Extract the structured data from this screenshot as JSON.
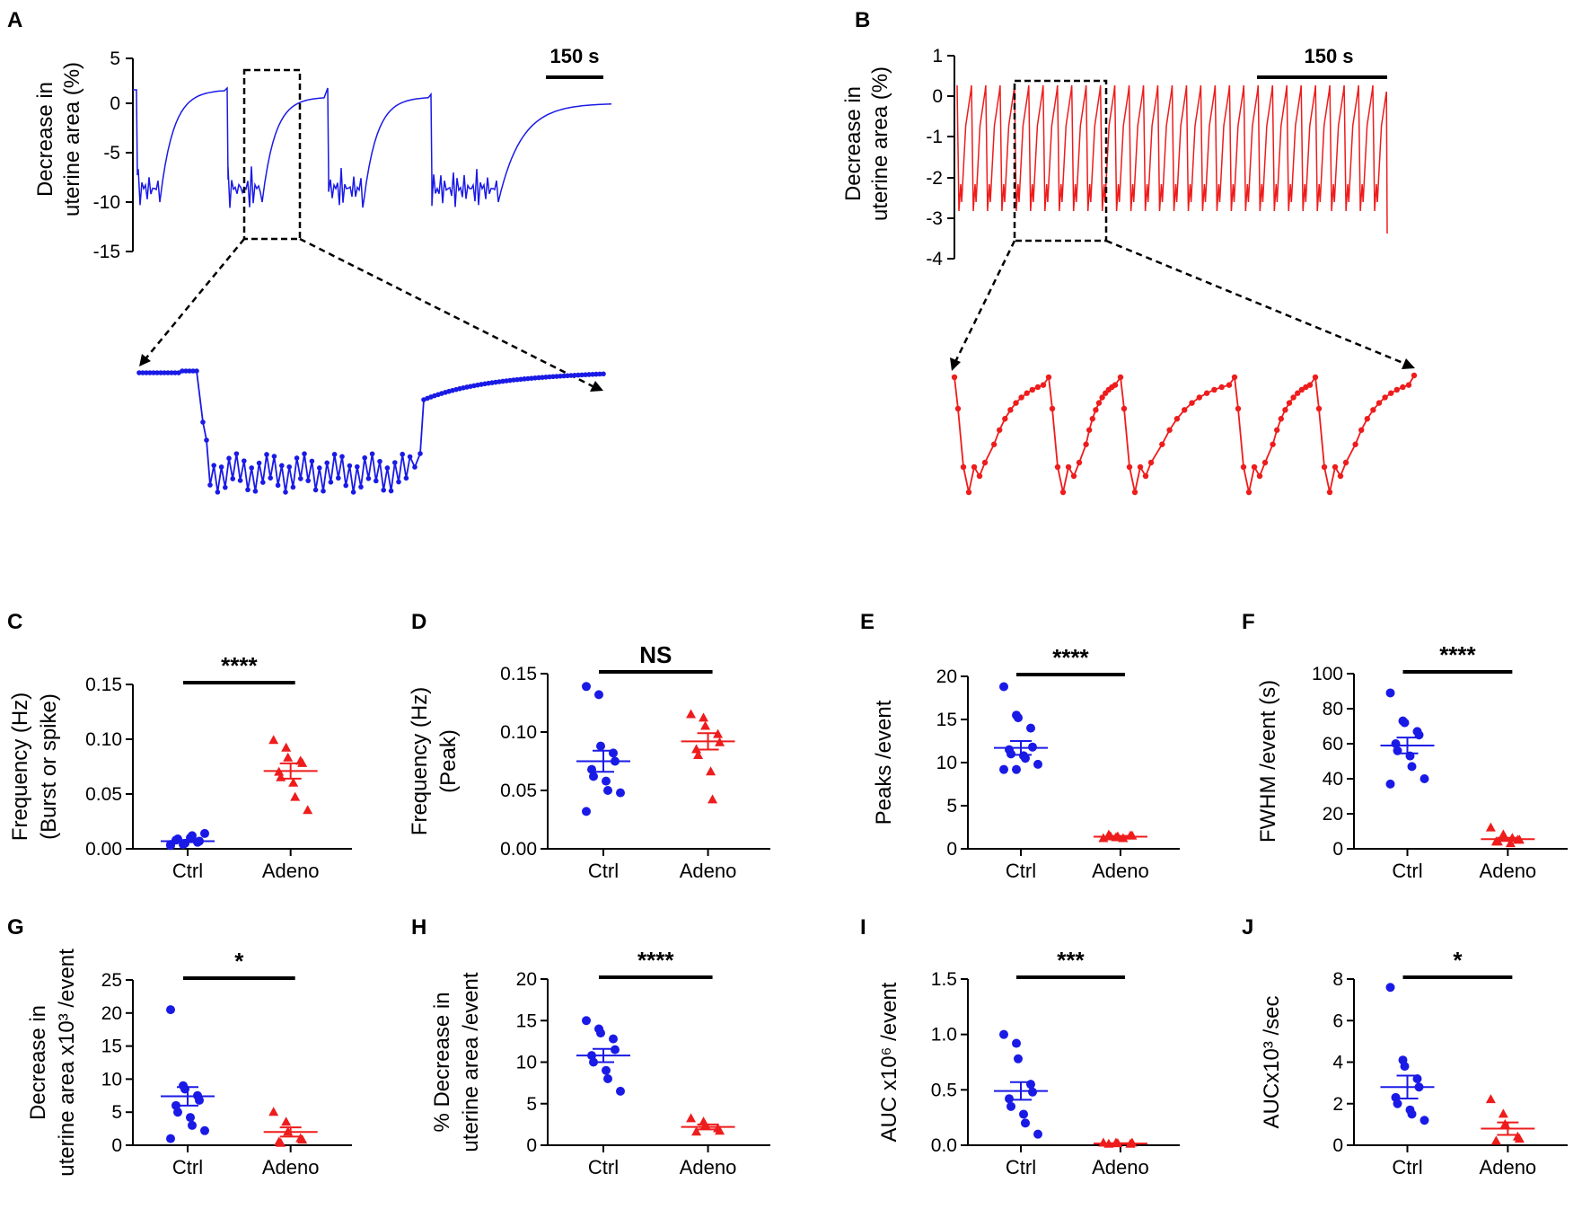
{
  "colors": {
    "ctrl": "#1a1ae6",
    "adeno": "#ee1c1c"
  },
  "panels": {
    "A": {
      "label": "A",
      "ylabel": [
        "Decrease in",
        "uterine area (%)"
      ],
      "yticks": [
        "5",
        "0",
        "-5",
        "-10",
        "-15"
      ],
      "scalebar": "150 s"
    },
    "B": {
      "label": "B",
      "ylabel": [
        "Decrease in",
        "uterine area (%)"
      ],
      "yticks": [
        "1",
        "0",
        "-1",
        "-2",
        "-3",
        "-4"
      ],
      "scalebar": "150 s"
    }
  },
  "chart_data": [
    {
      "id": "C",
      "type": "scatter",
      "label": "C",
      "ylabel": [
        "Frequency (Hz)",
        "(Burst or spike)"
      ],
      "categories": [
        "Ctrl",
        "Adeno"
      ],
      "ylim": [
        0,
        0.15
      ],
      "yticks": [
        "0.15",
        "0.10",
        "0.05",
        "0.00"
      ],
      "ytick_values": [
        0.15,
        0.1,
        0.05,
        0.0
      ],
      "significance": "****",
      "series": [
        {
          "name": "Ctrl",
          "marker": "circle",
          "mean": 0.007,
          "sem": 0.001,
          "values": [
            0.003,
            0.004,
            0.005,
            0.006,
            0.007,
            0.008,
            0.009,
            0.01,
            0.012,
            0.014,
            0.004
          ]
        },
        {
          "name": "Adeno",
          "marker": "triangle",
          "mean": 0.071,
          "sem": 0.007,
          "values": [
            0.099,
            0.092,
            0.083,
            0.08,
            0.078,
            0.07,
            0.065,
            0.06,
            0.047,
            0.035
          ]
        }
      ]
    },
    {
      "id": "D",
      "type": "scatter",
      "label": "D",
      "ylabel": [
        "Frequency (Hz)",
        "(Peak)"
      ],
      "categories": [
        "Ctrl",
        "Adeno"
      ],
      "ylim": [
        0,
        0.15
      ],
      "yticks": [
        "0.15",
        "0.10",
        "0.05",
        "0.00"
      ],
      "ytick_values": [
        0.15,
        0.1,
        0.05,
        0.0
      ],
      "significance": "NS",
      "series": [
        {
          "name": "Ctrl",
          "marker": "circle",
          "mean": 0.075,
          "sem": 0.009,
          "values": [
            0.139,
            0.132,
            0.088,
            0.082,
            0.075,
            0.068,
            0.062,
            0.058,
            0.05,
            0.048,
            0.032
          ]
        },
        {
          "name": "Adeno",
          "marker": "triangle",
          "mean": 0.092,
          "sem": 0.007,
          "values": [
            0.115,
            0.112,
            0.105,
            0.098,
            0.091,
            0.085,
            0.08,
            0.066,
            0.042
          ]
        }
      ]
    },
    {
      "id": "E",
      "type": "scatter",
      "label": "E",
      "ylabel": [
        "Peaks /event"
      ],
      "categories": [
        "Ctrl",
        "Adeno"
      ],
      "ylim": [
        0,
        20
      ],
      "yticks": [
        "20",
        "15",
        "10",
        "5",
        "0"
      ],
      "ytick_values": [
        20,
        15,
        10,
        5,
        0
      ],
      "significance": "****",
      "series": [
        {
          "name": "Ctrl",
          "marker": "circle",
          "mean": 11.7,
          "sem": 0.8,
          "values": [
            18.8,
            15.5,
            15.2,
            14.0,
            11.8,
            11.5,
            11.0,
            10.8,
            10.5,
            9.8,
            9.2,
            9.2
          ]
        },
        {
          "name": "Adeno",
          "marker": "triangle",
          "mean": 1.4,
          "sem": 0.1,
          "values": [
            1.2,
            1.3,
            1.4,
            1.5,
            1.5,
            1.6,
            1.4,
            1.2
          ]
        }
      ]
    },
    {
      "id": "F",
      "type": "scatter",
      "label": "F",
      "ylabel": [
        "FWHM /event (s)"
      ],
      "categories": [
        "Ctrl",
        "Adeno"
      ],
      "ylim": [
        0,
        100
      ],
      "yticks": [
        "100",
        "80",
        "60",
        "40",
        "20",
        "0"
      ],
      "ytick_values": [
        100,
        80,
        60,
        40,
        20,
        0
      ],
      "significance": "****",
      "series": [
        {
          "name": "Ctrl",
          "marker": "circle",
          "mean": 59,
          "sem": 4.5,
          "values": [
            89,
            73,
            72,
            67,
            65,
            60,
            56,
            53,
            47,
            40,
            37
          ]
        },
        {
          "name": "Adeno",
          "marker": "triangle",
          "mean": 5.5,
          "sem": 0.8,
          "values": [
            12,
            8,
            6,
            5,
            5,
            4,
            4,
            3,
            6
          ]
        }
      ]
    },
    {
      "id": "G",
      "type": "scatter",
      "label": "G",
      "ylabel": [
        "Decrease in",
        "uterine area x10³ /event"
      ],
      "categories": [
        "Ctrl",
        "Adeno"
      ],
      "ylim": [
        0,
        25
      ],
      "yticks": [
        "25",
        "20",
        "15",
        "10",
        "5",
        "0"
      ],
      "ytick_values": [
        25,
        20,
        15,
        10,
        5,
        0
      ],
      "significance": "*",
      "series": [
        {
          "name": "Ctrl",
          "marker": "circle",
          "mean": 7.4,
          "sem": 1.4,
          "values": [
            20.5,
            9.0,
            8.5,
            7.5,
            6.8,
            6.0,
            5.0,
            4.2,
            3.0,
            2.2,
            1.0
          ]
        },
        {
          "name": "Adeno",
          "marker": "triangle",
          "mean": 2.0,
          "sem": 0.7,
          "values": [
            5.0,
            3.5,
            2.0,
            1.0,
            0.8,
            0.5,
            0.3
          ]
        }
      ]
    },
    {
      "id": "H",
      "type": "scatter",
      "label": "H",
      "ylabel": [
        "% Decrease in",
        "uterine area /event"
      ],
      "categories": [
        "Ctrl",
        "Adeno"
      ],
      "ylim": [
        0,
        20
      ],
      "yticks": [
        "20",
        "15",
        "10",
        "5",
        "0"
      ],
      "ytick_values": [
        20,
        15,
        10,
        5,
        0
      ],
      "significance": "****",
      "series": [
        {
          "name": "Ctrl",
          "marker": "circle",
          "mean": 10.8,
          "sem": 0.8,
          "values": [
            15.0,
            14.0,
            13.5,
            12.8,
            11.5,
            10.8,
            10.0,
            9.0,
            8.0,
            6.5
          ]
        },
        {
          "name": "Adeno",
          "marker": "triangle",
          "mean": 2.2,
          "sem": 0.3,
          "values": [
            3.2,
            2.8,
            2.4,
            2.0,
            1.7,
            1.6
          ]
        }
      ]
    },
    {
      "id": "I",
      "type": "scatter",
      "label": "I",
      "ylabel": [
        "AUC x10⁶ /event"
      ],
      "categories": [
        "Ctrl",
        "Adeno"
      ],
      "ylim": [
        0,
        1.5
      ],
      "yticks": [
        "1.5",
        "1.0",
        "0.5",
        "0.0"
      ],
      "ytick_values": [
        1.5,
        1.0,
        0.5,
        0.0
      ],
      "significance": "***",
      "series": [
        {
          "name": "Ctrl",
          "marker": "circle",
          "mean": 0.49,
          "sem": 0.08,
          "values": [
            1.0,
            0.92,
            0.78,
            0.55,
            0.48,
            0.42,
            0.35,
            0.28,
            0.2,
            0.1
          ]
        },
        {
          "name": "Adeno",
          "marker": "triangle",
          "mean": 0.015,
          "sem": 0.003,
          "values": [
            0.02,
            0.02,
            0.015,
            0.01,
            0.02,
            0.01
          ]
        }
      ]
    },
    {
      "id": "J",
      "type": "scatter",
      "label": "J",
      "ylabel": [
        "AUCx10³ /sec"
      ],
      "categories": [
        "Ctrl",
        "Adeno"
      ],
      "ylim": [
        0,
        8
      ],
      "yticks": [
        "8",
        "6",
        "4",
        "2",
        "0"
      ],
      "ytick_values": [
        8,
        6,
        4,
        2,
        0
      ],
      "significance": "*",
      "series": [
        {
          "name": "Ctrl",
          "marker": "circle",
          "mean": 2.8,
          "sem": 0.55,
          "values": [
            7.6,
            4.1,
            3.8,
            3.2,
            2.8,
            2.3,
            2.0,
            1.7,
            1.5,
            1.2
          ]
        },
        {
          "name": "Adeno",
          "marker": "triangle",
          "mean": 0.8,
          "sem": 0.3,
          "values": [
            2.2,
            1.5,
            1.0,
            0.4,
            0.3,
            0.2
          ]
        }
      ]
    }
  ]
}
